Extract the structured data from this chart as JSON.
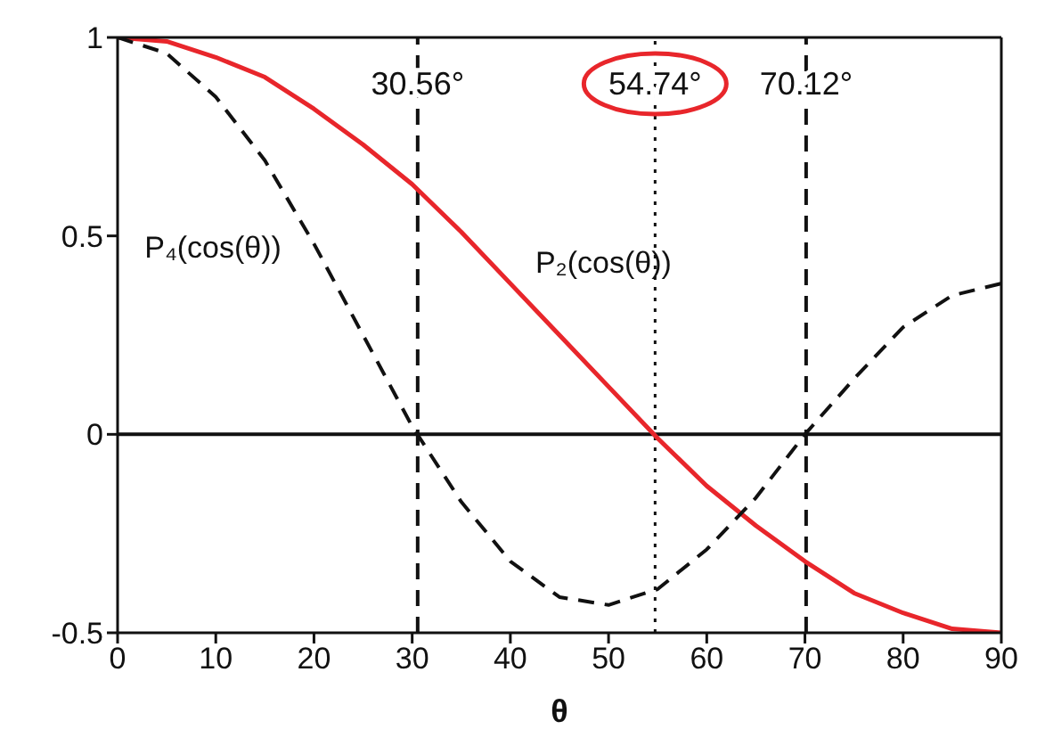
{
  "chart_data": {
    "type": "line",
    "xlabel": "θ",
    "x": [
      0,
      5,
      10,
      15,
      20,
      25,
      30,
      35,
      40,
      45,
      50,
      55,
      60,
      65,
      70,
      75,
      80,
      85,
      90
    ],
    "series": [
      {
        "name": "P₂(cos(θ))",
        "color": "#e8262b",
        "line_style": "solid",
        "values": [
          1,
          0.99,
          0.95,
          0.9,
          0.82,
          0.73,
          0.63,
          0.51,
          0.38,
          0.25,
          0.12,
          -0.01,
          -0.13,
          -0.23,
          -0.32,
          -0.4,
          -0.45,
          -0.49,
          -0.5
        ]
      },
      {
        "name": "P₄(cos(θ))",
        "color": "#111111",
        "line_style": "dashed",
        "values": [
          1,
          0.96,
          0.85,
          0.69,
          0.48,
          0.25,
          0.02,
          -0.17,
          -0.32,
          -0.41,
          -0.43,
          -0.39,
          -0.29,
          -0.16,
          0,
          0.14,
          0.27,
          0.35,
          0.38
        ]
      }
    ],
    "xlim": [
      0,
      90
    ],
    "xticks": [
      0,
      10,
      20,
      30,
      40,
      50,
      60,
      70,
      80,
      90
    ],
    "ylim": [
      -0.5,
      1
    ],
    "yticks": [
      -0.5,
      0,
      0.5,
      1
    ],
    "ref_lines": [
      {
        "axis": "x",
        "value": 30.56,
        "label": "30.56°",
        "line_style": "dashed",
        "color": "#111111"
      },
      {
        "axis": "x",
        "value": 54.74,
        "label": "54.74°",
        "line_style": "dotted",
        "color": "#111111"
      },
      {
        "axis": "x",
        "value": 70.12,
        "label": "70.12°",
        "line_style": "dashed",
        "color": "#111111"
      },
      {
        "axis": "y",
        "value": 0,
        "line_style": "solid",
        "color": "#111111"
      }
    ],
    "grid": false,
    "legend": false,
    "marker": "none"
  }
}
